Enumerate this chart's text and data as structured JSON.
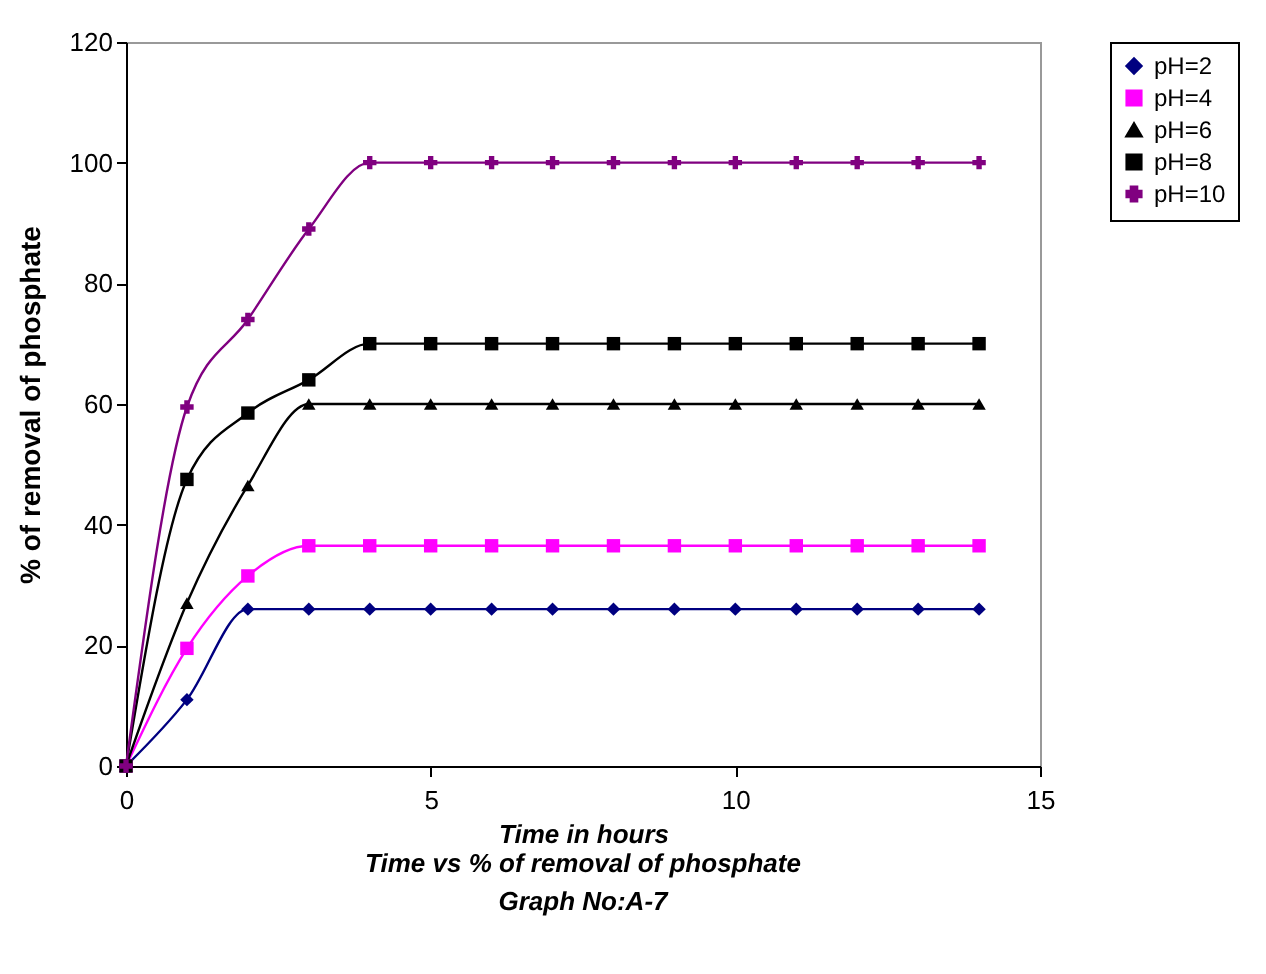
{
  "chart_data": {
    "type": "line",
    "xlabel": "Time in hours",
    "ylabel": "% of removal of phosphate",
    "annotations": [
      "Time vs % of removal of phosphate",
      "Graph No:A-7"
    ],
    "x": [
      0,
      1,
      2,
      3,
      4,
      5,
      6,
      7,
      8,
      9,
      10,
      11,
      12,
      13,
      14
    ],
    "xlim": [
      0,
      15
    ],
    "xticks": [
      0,
      5,
      10,
      15
    ],
    "ylim": [
      0,
      120
    ],
    "yticks": [
      0,
      20,
      40,
      60,
      80,
      100,
      120
    ],
    "grid": false,
    "legend": "right",
    "series": [
      {
        "name": "pH=2",
        "color": "#000080",
        "marker": "diamond",
        "values": [
          0,
          11,
          26,
          26,
          26,
          26,
          26,
          26,
          26,
          26,
          26,
          26,
          26,
          26,
          26
        ]
      },
      {
        "name": "pH=4",
        "color": "#ff00ff",
        "marker": "square",
        "values": [
          0,
          19.5,
          31.5,
          36.5,
          36.5,
          36.5,
          36.5,
          36.5,
          36.5,
          36.5,
          36.5,
          36.5,
          36.5,
          36.5,
          36.5
        ]
      },
      {
        "name": "pH=6",
        "color": "#000000",
        "marker": "triangle",
        "values": [
          0,
          27,
          46.5,
          60,
          60,
          60,
          60,
          60,
          60,
          60,
          60,
          60,
          60,
          60,
          60
        ]
      },
      {
        "name": "pH=8",
        "color": "#000000",
        "marker": "square",
        "values": [
          0,
          47.5,
          58.5,
          64,
          70,
          70,
          70,
          70,
          70,
          70,
          70,
          70,
          70,
          70,
          70
        ]
      },
      {
        "name": "pH=10",
        "color": "#800080",
        "marker": "cross",
        "values": [
          0,
          59.5,
          74,
          89,
          100,
          100,
          100,
          100,
          100,
          100,
          100,
          100,
          100,
          100,
          100
        ]
      }
    ]
  }
}
